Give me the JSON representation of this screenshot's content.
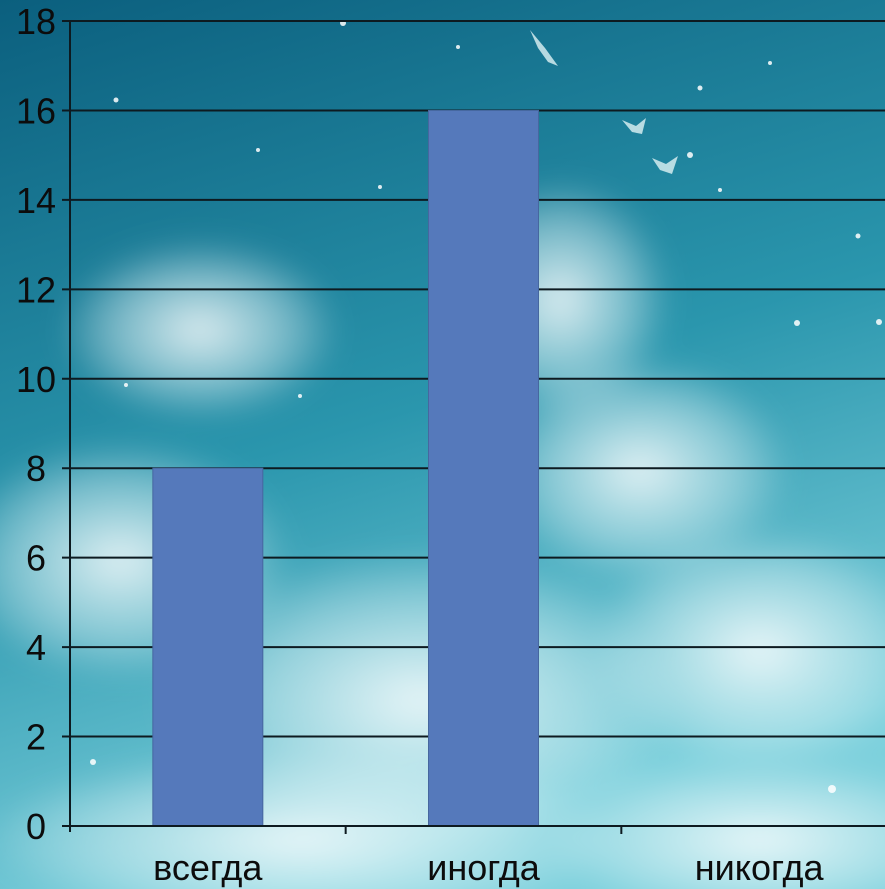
{
  "chart_data": {
    "type": "bar",
    "categories": [
      "всегда",
      "иногда",
      "никогда"
    ],
    "values": [
      8,
      16,
      0
    ],
    "title": "",
    "xlabel": "",
    "ylabel": "",
    "ylim": [
      0,
      18
    ],
    "y_ticks": [
      "0",
      "2",
      "4",
      "6",
      "8",
      "10",
      "12",
      "14",
      "16",
      "18"
    ],
    "grid": true,
    "legend": "none"
  },
  "colors": {
    "bar": "#5579bb",
    "bar_border": "#46679f",
    "gridline": "#0d1a20",
    "axis": "#0d1a20",
    "sky_top": "#0b5f7e",
    "sky_mid": "#2a96ad",
    "sky_bottom": "#7cd0dc",
    "cloud": "#ffffff"
  },
  "background": {
    "description_icon": "sky-clouds-background"
  }
}
